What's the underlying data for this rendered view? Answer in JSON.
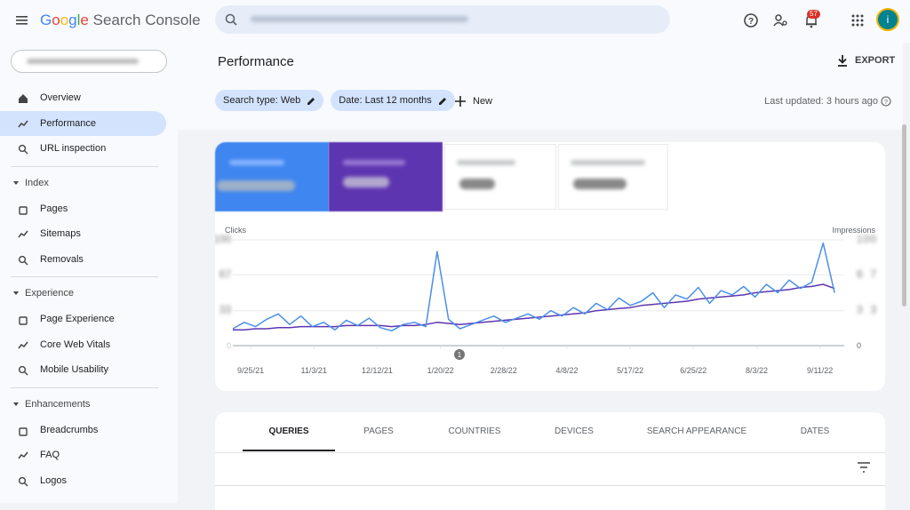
{
  "header": {
    "logo": "Google",
    "product": "Search Console",
    "notifications": "57",
    "avatar": "i"
  },
  "nav": {
    "selected": "Performance",
    "top": [
      "Overview",
      "Performance",
      "URL inspection"
    ],
    "sections": [
      {
        "title": "Index",
        "items": [
          "Pages",
          "Sitemaps",
          "Removals"
        ]
      },
      {
        "title": "Experience",
        "items": [
          "Page Experience",
          "Core Web Vitals",
          "Mobile Usability"
        ]
      },
      {
        "title": "Enhancements",
        "items": [
          "Breadcrumbs",
          "FAQ",
          "Logos"
        ]
      }
    ]
  },
  "page": {
    "title": "Performance",
    "export": "EXPORT",
    "filters": [
      "Search type: Web",
      "Date: Last 12 months"
    ],
    "new": "New",
    "last_updated": "Last updated: 3 hours ago"
  },
  "chart": {
    "type": "line",
    "y_label": "Clicks",
    "y2_label": "Impressions",
    "annotation": "1",
    "xlim": [
      "9/14/21",
      "9/26/22"
    ],
    "xticks": [
      "9/25/21",
      "11/3/21",
      "12/12/21",
      "1/20/22",
      "2/28/22",
      "4/8/22",
      "5/17/22",
      "6/25/22",
      "8/3/22",
      "9/11/22"
    ],
    "ylim": [
      0,
      100
    ],
    "yticks": [
      0,
      33,
      67,
      100
    ],
    "y2lim": [
      0,
      100
    ],
    "y2ticks": [
      0,
      33,
      67,
      100
    ],
    "grid": true,
    "x": [
      "9/14/21",
      "9/21/21",
      "9/28/21",
      "10/5/21",
      "10/12/21",
      "10/19/21",
      "10/26/21",
      "11/2/21",
      "11/9/21",
      "11/16/21",
      "11/23/21",
      "11/30/21",
      "12/7/21",
      "12/14/21",
      "12/21/21",
      "12/28/21",
      "1/4/22",
      "1/11/22",
      "1/18/22",
      "1/25/22",
      "2/1/22",
      "2/8/22",
      "2/15/22",
      "2/22/22",
      "3/1/22",
      "3/8/22",
      "3/15/22",
      "3/22/22",
      "3/29/22",
      "4/5/22",
      "4/12/22",
      "4/19/22",
      "4/26/22",
      "5/3/22",
      "5/10/22",
      "5/17/22",
      "5/24/22",
      "5/31/22",
      "6/7/22",
      "6/14/22",
      "6/21/22",
      "6/28/22",
      "7/5/22",
      "7/12/22",
      "7/19/22",
      "7/26/22",
      "8/2/22",
      "8/9/22",
      "8/16/22",
      "8/23/22",
      "8/30/22",
      "9/6/22",
      "9/13/22",
      "9/20/22"
    ],
    "series": [
      {
        "name": "Clicks",
        "color": "#4a8fe7",
        "axis": "y",
        "values": [
          16,
          22,
          18,
          25,
          30,
          20,
          28,
          18,
          22,
          15,
          24,
          19,
          26,
          17,
          14,
          20,
          22,
          18,
          89,
          25,
          16,
          20,
          24,
          28,
          22,
          26,
          30,
          25,
          33,
          28,
          36,
          30,
          40,
          34,
          45,
          38,
          42,
          50,
          36,
          48,
          44,
          55,
          40,
          52,
          48,
          56,
          46,
          58,
          50,
          62,
          54,
          60,
          97,
          50
        ]
      },
      {
        "name": "Impressions",
        "color": "#5e35b1",
        "axis": "y2",
        "values": [
          15,
          15,
          16,
          16,
          17,
          17,
          18,
          18,
          18,
          18,
          19,
          19,
          19,
          19,
          18,
          19,
          19,
          20,
          22,
          21,
          20,
          21,
          22,
          23,
          24,
          25,
          26,
          27,
          28,
          29,
          30,
          31,
          33,
          34,
          35,
          36,
          38,
          39,
          40,
          41,
          42,
          44,
          45,
          46,
          47,
          48,
          50,
          51,
          52,
          53,
          55,
          56,
          58,
          54
        ]
      }
    ]
  },
  "tabs": {
    "selected": "QUERIES",
    "items": [
      "QUERIES",
      "PAGES",
      "COUNTRIES",
      "DEVICES",
      "SEARCH APPEARANCE",
      "DATES"
    ]
  }
}
